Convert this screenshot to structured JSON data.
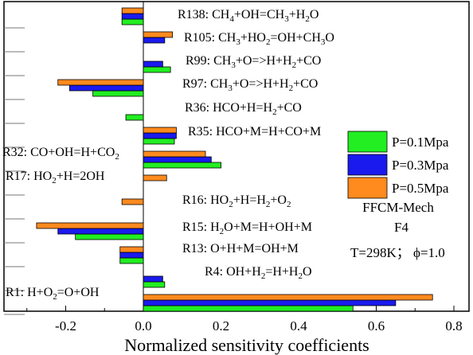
{
  "chart_data": {
    "type": "bar",
    "orientation": "horizontal",
    "xlabel": "Normalized sensitivity coefficients",
    "ylabel": "",
    "xlim": [
      -0.3,
      0.85
    ],
    "x_ticks": [
      -0.2,
      0.0,
      0.2,
      0.4,
      0.6,
      0.8
    ],
    "x_tick_labels": [
      "-0.2",
      "0.0",
      "0.2",
      "0.4",
      "0.6",
      "0.8"
    ],
    "grid": false,
    "legend_position": "right",
    "categories": [
      {
        "id": "R138",
        "prefix": "R138: CH",
        "parts": [
          [
            "4",
            "sub"
          ],
          [
            "+OH=CH",
            ""
          ],
          [
            "3",
            "sub"
          ],
          [
            "+H",
            ""
          ],
          [
            "2",
            "sub"
          ],
          [
            "O",
            ""
          ]
        ]
      },
      {
        "id": "R105",
        "prefix": "R105: CH",
        "parts": [
          [
            "3",
            "sub"
          ],
          [
            "+HO",
            ""
          ],
          [
            "2",
            "sub"
          ],
          [
            "=OH+CH",
            ""
          ],
          [
            "3",
            "sub"
          ],
          [
            "O",
            ""
          ]
        ]
      },
      {
        "id": "R99",
        "prefix": "R99: CH",
        "parts": [
          [
            "3",
            "sub"
          ],
          [
            "+O=>H+H",
            ""
          ],
          [
            "2",
            "sub"
          ],
          [
            "+CO",
            ""
          ]
        ]
      },
      {
        "id": "R97",
        "prefix": "R97: CH",
        "parts": [
          [
            "3",
            "sub"
          ],
          [
            "+O=>H+H",
            ""
          ],
          [
            "2",
            "sub"
          ],
          [
            "+CO",
            ""
          ]
        ]
      },
      {
        "id": "R36",
        "prefix": "R36: HCO+H=H",
        "parts": [
          [
            "2",
            "sub"
          ],
          [
            "+CO",
            ""
          ]
        ]
      },
      {
        "id": "R35",
        "prefix": "R35: HCO+M=H+CO+M",
        "parts": []
      },
      {
        "id": "R32",
        "prefix": "R32: CO+OH=H+CO",
        "parts": [
          [
            "2",
            "sub"
          ]
        ]
      },
      {
        "id": "R17",
        "prefix": "R17: HO",
        "parts": [
          [
            "2",
            "sub"
          ],
          [
            "+H=2OH",
            ""
          ]
        ]
      },
      {
        "id": "R16",
        "prefix": "R16: HO",
        "parts": [
          [
            "2",
            "sub"
          ],
          [
            "+H=H",
            ""
          ],
          [
            "2",
            "sub"
          ],
          [
            "+O",
            ""
          ],
          [
            "2",
            "sub"
          ]
        ]
      },
      {
        "id": "R15",
        "prefix": "R15: H",
        "parts": [
          [
            "2",
            "sub"
          ],
          [
            "O+M=H+OH+M",
            ""
          ]
        ]
      },
      {
        "id": "R13",
        "prefix": "R13: O+H+M=OH+M",
        "parts": []
      },
      {
        "id": "R4",
        "prefix": "R4: OH+H",
        "parts": [
          [
            "2",
            "sub"
          ],
          [
            "=H+H",
            ""
          ],
          [
            "2",
            "sub"
          ],
          [
            "O",
            ""
          ]
        ]
      },
      {
        "id": "R1",
        "prefix": "R1: H+O",
        "parts": [
          [
            "2",
            "sub"
          ],
          [
            "=O+OH",
            ""
          ]
        ]
      }
    ],
    "series": [
      {
        "name": "P=0.1Mpa",
        "color": "#22ee22",
        "values": [
          -0.055,
          0.0,
          0.07,
          -0.13,
          -0.045,
          0.08,
          0.2,
          0.0,
          0.0,
          -0.175,
          -0.06,
          0.055,
          0.54
        ]
      },
      {
        "name": "P=0.3Mpa",
        "color": "#1a1aee",
        "values": [
          -0.055,
          0.055,
          0.05,
          -0.19,
          0.0,
          0.085,
          0.175,
          0.0,
          0.0,
          -0.22,
          -0.06,
          0.05,
          0.65
        ]
      },
      {
        "name": "P=0.5Mpa",
        "color": "#ff8a1e",
        "values": [
          -0.055,
          0.075,
          0.0,
          -0.22,
          0.0,
          0.085,
          0.16,
          0.06,
          -0.055,
          -0.275,
          -0.06,
          0.0,
          0.745
        ]
      }
    ],
    "annotations": [
      {
        "text": "FFCM-Mech"
      },
      {
        "text": "F4"
      },
      {
        "text": "T=298K；  ϕ=1.0"
      }
    ]
  }
}
